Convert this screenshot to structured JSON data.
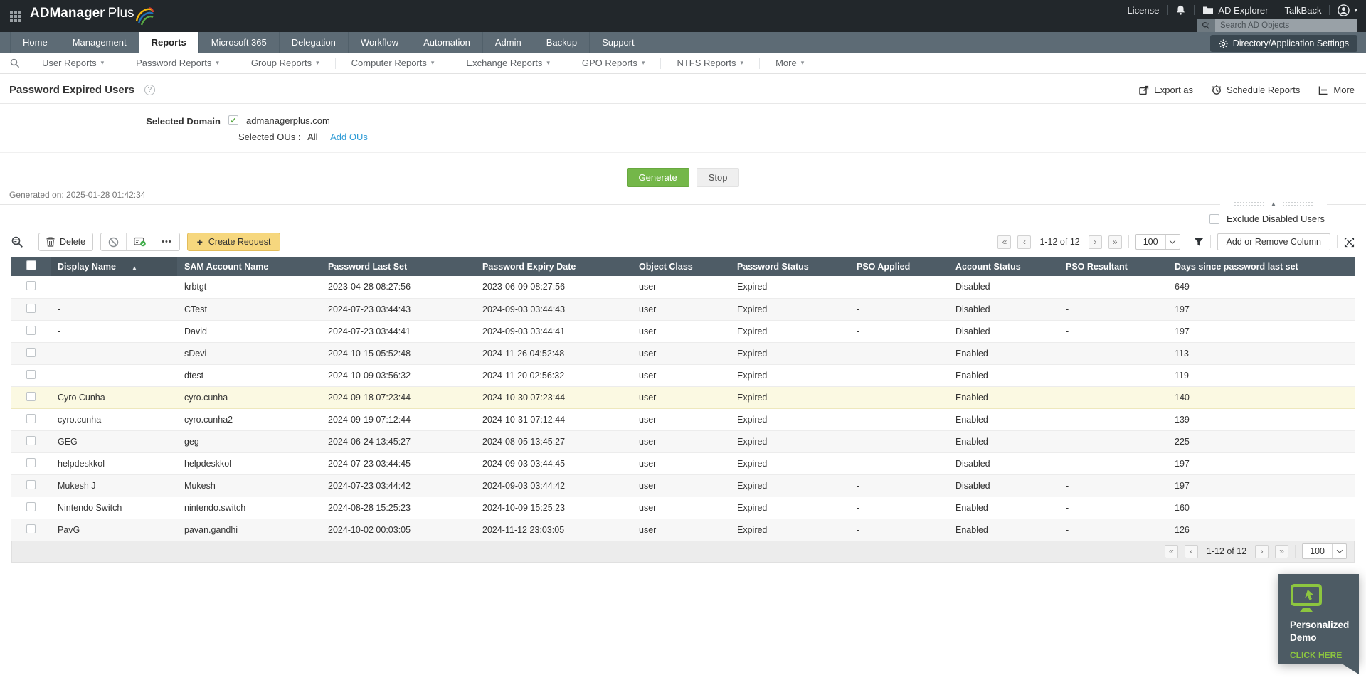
{
  "header": {
    "logo": "ADManager Plus",
    "logo_brand": "ADManager",
    "logo_suffix": "Plus",
    "license": "License",
    "ad_explorer": "AD Explorer",
    "talkback": "TalkBack",
    "search_placeholder": "Search AD Objects"
  },
  "nav": {
    "tabs": [
      {
        "label": "Home",
        "active": false
      },
      {
        "label": "Management",
        "active": false
      },
      {
        "label": "Reports",
        "active": true
      },
      {
        "label": "Microsoft 365",
        "active": false
      },
      {
        "label": "Delegation",
        "active": false
      },
      {
        "label": "Workflow",
        "active": false
      },
      {
        "label": "Automation",
        "active": false
      },
      {
        "label": "Admin",
        "active": false
      },
      {
        "label": "Backup",
        "active": false
      },
      {
        "label": "Support",
        "active": false
      }
    ],
    "settings_button": "Directory/Application Settings",
    "report_menus": [
      "User Reports",
      "Password Reports",
      "Group Reports",
      "Computer Reports",
      "Exchange Reports",
      "GPO Reports",
      "NTFS Reports",
      "More"
    ]
  },
  "page": {
    "title": "Password Expired Users",
    "export_as": "Export as",
    "schedule_reports": "Schedule Reports",
    "more": "More",
    "selected_domain_label": "Selected Domain",
    "domain": "admanagerplus.com",
    "selected_ous_label": "Selected OUs :",
    "selected_ous_value": "All",
    "add_ous": "Add OUs",
    "generate": "Generate",
    "stop": "Stop",
    "generated_on": "Generated on: 2025-01-28 01:42:34",
    "exclude_disabled": "Exclude Disabled Users"
  },
  "toolbar": {
    "delete": "Delete",
    "create_request": "Create Request",
    "pagination": "1-12 of 12",
    "page_size": "100",
    "add_remove_column": "Add or Remove Column"
  },
  "table": {
    "columns": [
      "Display Name",
      "SAM Account Name",
      "Password Last Set",
      "Password Expiry Date",
      "Object Class",
      "Password Status",
      "PSO Applied",
      "Account Status",
      "PSO Resultant",
      "Days since password last set"
    ],
    "sorted_column": "Display Name",
    "highlighted_row_index": 5,
    "rows": [
      [
        "-",
        "krbtgt",
        "2023-04-28 08:27:56",
        "2023-06-09 08:27:56",
        "user",
        "Expired",
        "-",
        "Disabled",
        "-",
        "649"
      ],
      [
        "-",
        "CTest",
        "2024-07-23 03:44:43",
        "2024-09-03 03:44:43",
        "user",
        "Expired",
        "-",
        "Disabled",
        "-",
        "197"
      ],
      [
        "-",
        "David",
        "2024-07-23 03:44:41",
        "2024-09-03 03:44:41",
        "user",
        "Expired",
        "-",
        "Disabled",
        "-",
        "197"
      ],
      [
        "-",
        "sDevi",
        "2024-10-15 05:52:48",
        "2024-11-26 04:52:48",
        "user",
        "Expired",
        "-",
        "Enabled",
        "-",
        "113"
      ],
      [
        "-",
        "dtest",
        "2024-10-09 03:56:32",
        "2024-11-20 02:56:32",
        "user",
        "Expired",
        "-",
        "Enabled",
        "-",
        "119"
      ],
      [
        "Cyro Cunha",
        "cyro.cunha",
        "2024-09-18 07:23:44",
        "2024-10-30 07:23:44",
        "user",
        "Expired",
        "-",
        "Enabled",
        "-",
        "140"
      ],
      [
        "cyro.cunha",
        "cyro.cunha2",
        "2024-09-19 07:12:44",
        "2024-10-31 07:12:44",
        "user",
        "Expired",
        "-",
        "Enabled",
        "-",
        "139"
      ],
      [
        "GEG",
        "geg",
        "2024-06-24 13:45:27",
        "2024-08-05 13:45:27",
        "user",
        "Expired",
        "-",
        "Enabled",
        "-",
        "225"
      ],
      [
        "helpdeskkol",
        "helpdeskkol",
        "2024-07-23 03:44:45",
        "2024-09-03 03:44:45",
        "user",
        "Expired",
        "-",
        "Disabled",
        "-",
        "197"
      ],
      [
        "Mukesh J",
        "Mukesh",
        "2024-07-23 03:44:42",
        "2024-09-03 03:44:42",
        "user",
        "Expired",
        "-",
        "Disabled",
        "-",
        "197"
      ],
      [
        "Nintendo Switch",
        "nintendo.switch",
        "2024-08-28 15:25:23",
        "2024-10-09 15:25:23",
        "user",
        "Expired",
        "-",
        "Enabled",
        "-",
        "160"
      ],
      [
        "PavG",
        "pavan.gandhi",
        "2024-10-02 00:03:05",
        "2024-11-12 23:03:05",
        "user",
        "Expired",
        "-",
        "Enabled",
        "-",
        "126"
      ]
    ]
  },
  "footer": {
    "pagination": "1-12 of 12",
    "page_size": "100"
  },
  "demo": {
    "title": "Personalized Demo",
    "cta": "CLICK HERE"
  },
  "icons": {
    "caret_down": "▾",
    "sort_asc": "▲",
    "collapse_up": "▲",
    "first": "«",
    "prev": "‹",
    "next": "›",
    "last": "»",
    "plus": "+",
    "check": "✓",
    "ellipsis": "•••",
    "question": "?"
  },
  "colors": {
    "accent_green": "#74b749",
    "create_request_yellow": "#f6d77e",
    "link_blue": "#2e9bd6",
    "header_dark": "#22272b",
    "tabbar_slate": "#5d6b75",
    "table_header_slate": "#4e5c66",
    "highlight_row": "#fbf9e2",
    "demo_green": "#8dc63f"
  }
}
